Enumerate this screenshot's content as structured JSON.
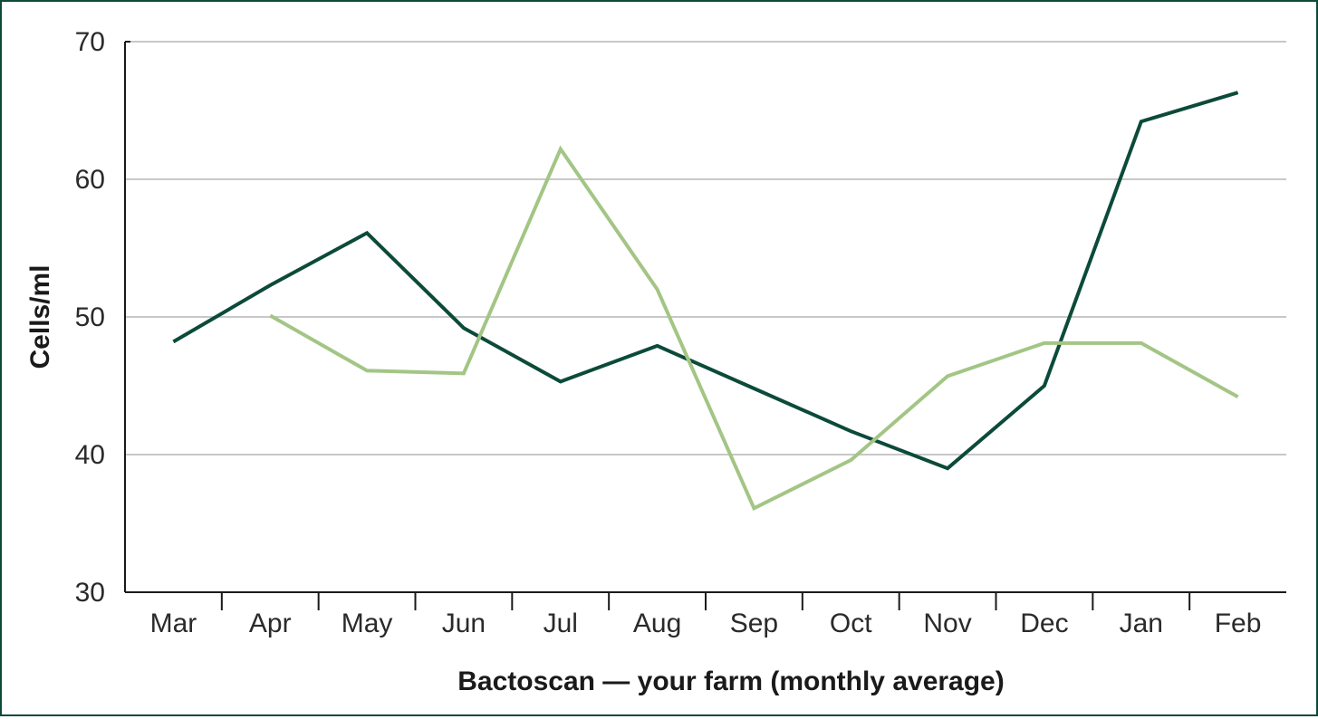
{
  "chart_data": {
    "type": "line",
    "title": "",
    "xlabel": "Bactoscan — your farm (monthly average)",
    "ylabel": "Cells/ml",
    "categories": [
      "Mar",
      "Apr",
      "May",
      "Jun",
      "Jul",
      "Aug",
      "Sep",
      "Oct",
      "Nov",
      "Dec",
      "Jan",
      "Feb"
    ],
    "ylim": [
      30,
      70
    ],
    "yticks": [
      30,
      40,
      50,
      60,
      70
    ],
    "grid": true,
    "legend": "none",
    "series": [
      {
        "color": "#0c4a3a",
        "values": [
          48.2,
          52.3,
          56.1,
          49.2,
          45.3,
          47.9,
          44.8,
          41.7,
          39.0,
          45.0,
          64.2,
          66.3
        ]
      },
      {
        "color": "#a3c585",
        "values": [
          null,
          50.1,
          46.1,
          45.9,
          62.2,
          52.0,
          36.1,
          39.6,
          45.7,
          48.1,
          48.1,
          44.2
        ]
      }
    ]
  }
}
